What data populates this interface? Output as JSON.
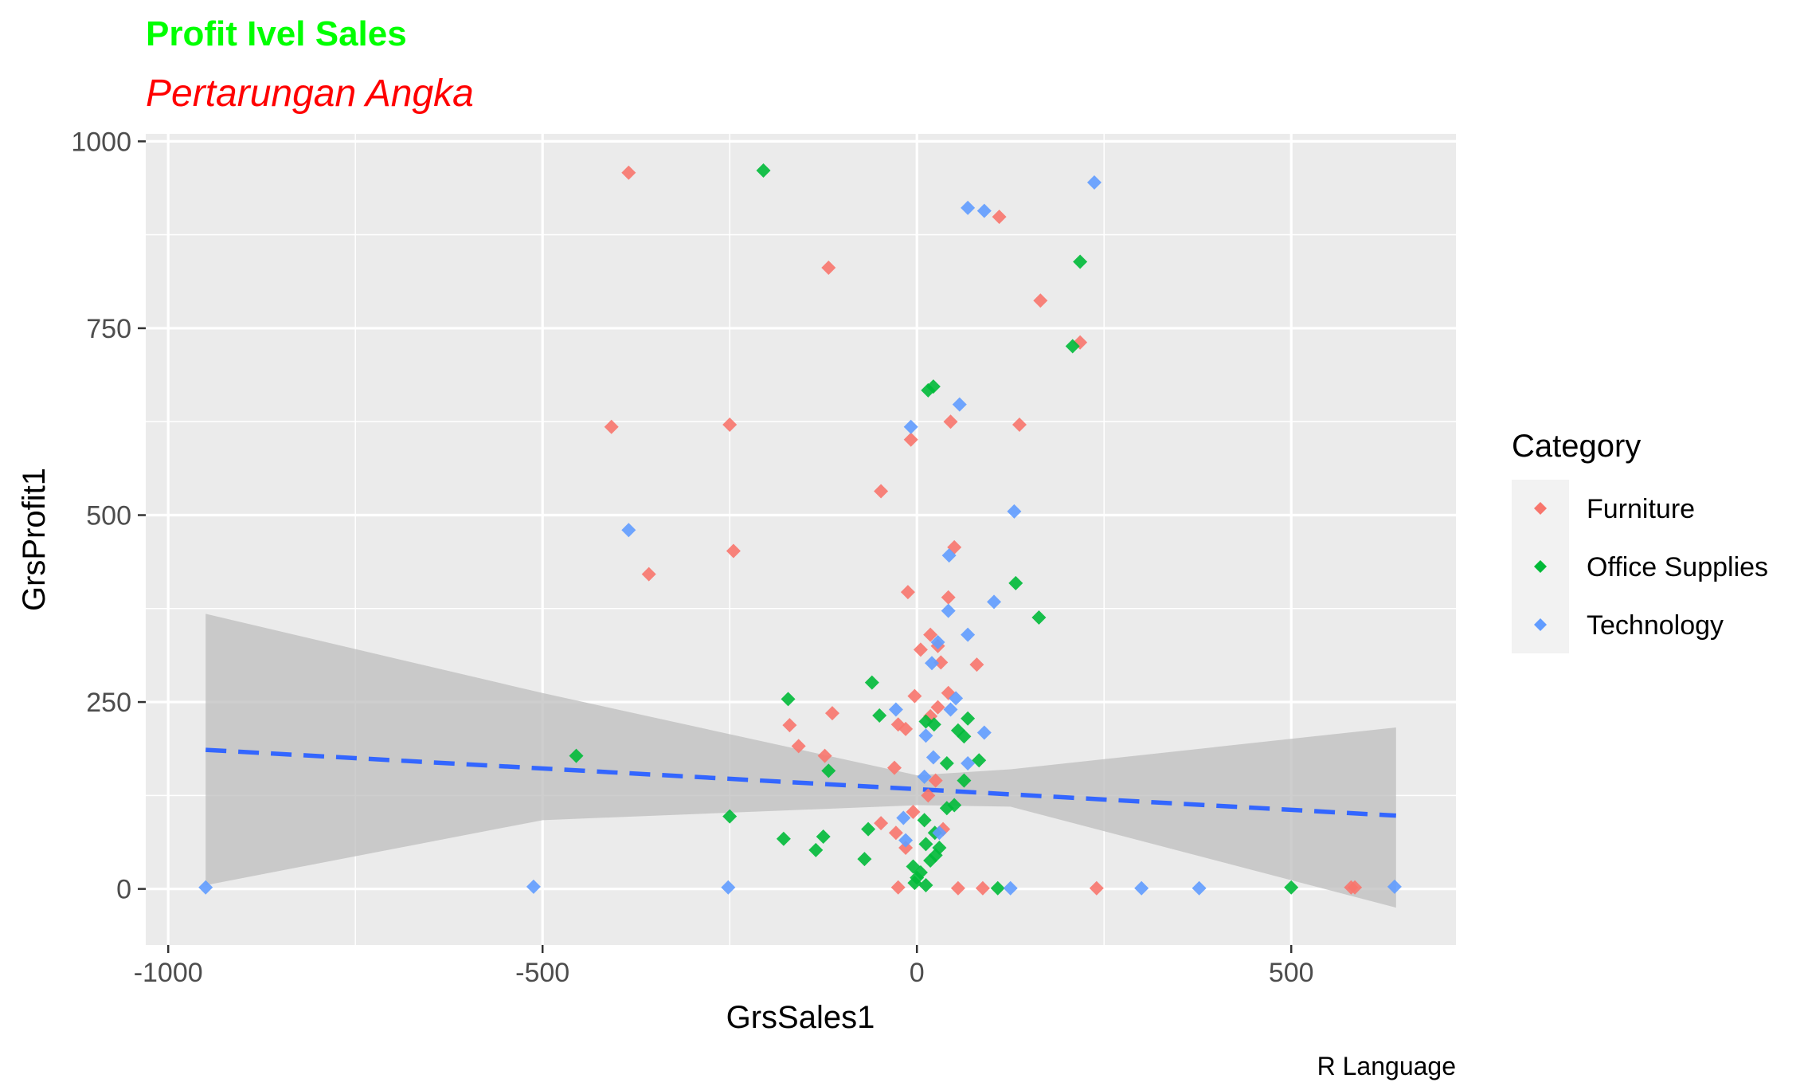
{
  "chart_data": {
    "type": "scatter",
    "title": "Profit Ivel Sales",
    "subtitle": "Pertarungan Angka",
    "caption": "R Language",
    "xlabel": "GrsSales1",
    "ylabel": "GrsProfit1",
    "xlim": [
      -1030,
      720
    ],
    "ylim": [
      -75,
      1010
    ],
    "x_ticks": [
      -1000,
      -500,
      0,
      500
    ],
    "x_tick_labels": [
      "-1000",
      "-500",
      "0",
      "500"
    ],
    "y_ticks": [
      0,
      250,
      500,
      750,
      1000
    ],
    "y_tick_labels": [
      "0",
      "250",
      "500",
      "750",
      "1000"
    ],
    "x_minor_ticks": [
      -750,
      -250,
      250
    ],
    "y_minor_ticks": [
      125,
      375,
      625,
      875
    ],
    "grid": true,
    "legend": {
      "title": "Category",
      "placement": "right",
      "entries": [
        "Furniture",
        "Office Supplies",
        "Technology"
      ]
    },
    "colors": {
      "title": "#00ff00",
      "subtitle": "#ff0000",
      "panel": "#ebebeb",
      "grid": "#ffffff",
      "Furniture": "#f8766d",
      "Office Supplies": "#00ba38",
      "Technology": "#619cff",
      "trend": "#3366ff",
      "ribbon": "#bebebe"
    },
    "series": [
      {
        "name": "Furniture",
        "points": [
          [
            -385,
            958
          ],
          [
            110,
            899
          ],
          [
            -118,
            831
          ],
          [
            165,
            787
          ],
          [
            218,
            731
          ],
          [
            -408,
            618
          ],
          [
            -250,
            621
          ],
          [
            137,
            621
          ],
          [
            -8,
            601
          ],
          [
            45,
            625
          ],
          [
            -48,
            532
          ],
          [
            50,
            457
          ],
          [
            -245,
            452
          ],
          [
            -358,
            421
          ],
          [
            -12,
            397
          ],
          [
            42,
            390
          ],
          [
            18,
            340
          ],
          [
            28,
            325
          ],
          [
            5,
            320
          ],
          [
            32,
            303
          ],
          [
            80,
            300
          ],
          [
            -3,
            258
          ],
          [
            42,
            262
          ],
          [
            28,
            243
          ],
          [
            18,
            231
          ],
          [
            -113,
            235
          ],
          [
            -170,
            219
          ],
          [
            -25,
            220
          ],
          [
            -15,
            214
          ],
          [
            -158,
            191
          ],
          [
            -123,
            178
          ],
          [
            -30,
            162
          ],
          [
            25,
            145
          ],
          [
            15,
            125
          ],
          [
            -5,
            103
          ],
          [
            -48,
            88
          ],
          [
            35,
            80
          ],
          [
            -28,
            75
          ],
          [
            -15,
            55
          ],
          [
            -25,
            2
          ],
          [
            55,
            1
          ],
          [
            88,
            1
          ],
          [
            240,
            1
          ],
          [
            580,
            2
          ],
          [
            585,
            2
          ]
        ]
      },
      {
        "name": "Office Supplies",
        "points": [
          [
            -205,
            961
          ],
          [
            218,
            839
          ],
          [
            208,
            726
          ],
          [
            15,
            667
          ],
          [
            22,
            672
          ],
          [
            132,
            409
          ],
          [
            163,
            363
          ],
          [
            -60,
            276
          ],
          [
            -172,
            254
          ],
          [
            -50,
            232
          ],
          [
            68,
            228
          ],
          [
            12,
            224
          ],
          [
            23,
            220
          ],
          [
            55,
            212
          ],
          [
            63,
            204
          ],
          [
            40,
            168
          ],
          [
            83,
            172
          ],
          [
            -118,
            158
          ],
          [
            63,
            145
          ],
          [
            50,
            112
          ],
          [
            40,
            108
          ],
          [
            -250,
            97
          ],
          [
            -65,
            80
          ],
          [
            -178,
            67
          ],
          [
            -125,
            70
          ],
          [
            -135,
            52
          ],
          [
            -70,
            40
          ],
          [
            -5,
            30
          ],
          [
            18,
            38
          ],
          [
            0,
            15
          ],
          [
            12,
            5
          ],
          [
            -3,
            8
          ],
          [
            5,
            22
          ],
          [
            12,
            60
          ],
          [
            25,
            45
          ],
          [
            10,
            92
          ],
          [
            24,
            75
          ],
          [
            30,
            55
          ],
          [
            500,
            2
          ],
          [
            108,
            1
          ],
          [
            -455,
            178
          ]
        ]
      },
      {
        "name": "Technology",
        "points": [
          [
            237,
            945
          ],
          [
            68,
            911
          ],
          [
            90,
            907
          ],
          [
            57,
            648
          ],
          [
            -8,
            618
          ],
          [
            130,
            505
          ],
          [
            -385,
            480
          ],
          [
            43,
            446
          ],
          [
            103,
            384
          ],
          [
            68,
            340
          ],
          [
            42,
            372
          ],
          [
            28,
            330
          ],
          [
            20,
            302
          ],
          [
            52,
            255
          ],
          [
            45,
            240
          ],
          [
            -28,
            240
          ],
          [
            12,
            205
          ],
          [
            90,
            209
          ],
          [
            22,
            176
          ],
          [
            68,
            168
          ],
          [
            10,
            150
          ],
          [
            -15,
            65
          ],
          [
            30,
            75
          ],
          [
            -18,
            95
          ],
          [
            -950,
            2
          ],
          [
            -512,
            3
          ],
          [
            -252,
            2
          ],
          [
            300,
            1
          ],
          [
            377,
            1
          ],
          [
            125,
            1
          ],
          [
            638,
            3
          ]
        ]
      }
    ],
    "trend_line": {
      "x": [
        -950,
        640
      ],
      "y": [
        186,
        98
      ]
    },
    "confidence_band": [
      [
        -950,
        5,
        368
      ],
      [
        -500,
        92,
        262
      ],
      [
        0,
        112,
        152
      ],
      [
        125,
        110,
        160
      ],
      [
        640,
        -25,
        216
      ]
    ]
  }
}
